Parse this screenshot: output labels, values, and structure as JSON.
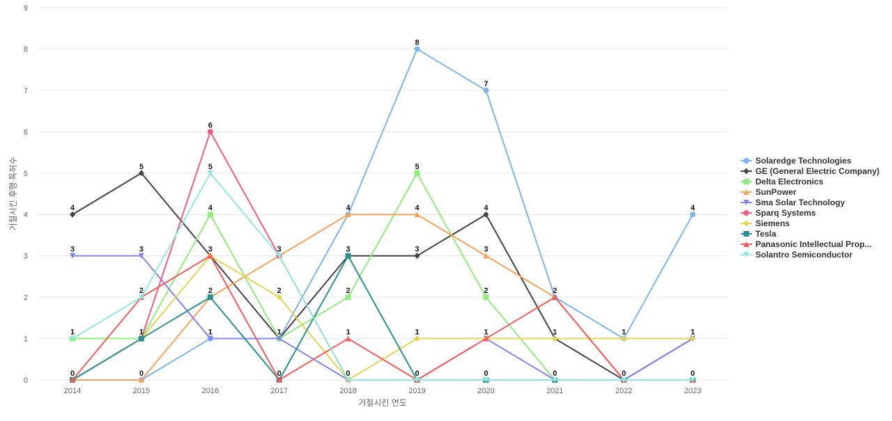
{
  "chart_data": {
    "type": "line",
    "title": "",
    "xlabel": "거절시킨 연도",
    "ylabel": "거절시킨 후행 특허수",
    "x": [
      "2014",
      "2015",
      "2016",
      "2017",
      "2018",
      "2019",
      "2020",
      "2021",
      "2022",
      "2023"
    ],
    "ylim": [
      0,
      9
    ],
    "yticks": [
      0,
      1,
      2,
      3,
      4,
      5,
      6,
      7,
      8,
      9
    ],
    "grid": true,
    "legend_position": "right",
    "series": [
      {
        "name": "Solaredge Technologies",
        "color": "#7cb5ec",
        "marker": "circle",
        "values": [
          0,
          0,
          1,
          1,
          4,
          8,
          7,
          2,
          1,
          4
        ]
      },
      {
        "name": "GE (General Electric Company)",
        "color": "#434348",
        "marker": "diamond",
        "values": [
          4,
          5,
          3,
          1,
          3,
          3,
          4,
          1,
          0,
          1
        ]
      },
      {
        "name": "Delta Electronics",
        "color": "#90ed7d",
        "marker": "square",
        "values": [
          1,
          1,
          4,
          1,
          2,
          5,
          2,
          0,
          0,
          0
        ]
      },
      {
        "name": "SunPower",
        "color": "#f7a35c",
        "marker": "triangle",
        "values": [
          0,
          0,
          2,
          3,
          4,
          4,
          3,
          2,
          0,
          0
        ]
      },
      {
        "name": "Sma Solar Technology",
        "color": "#8085e9",
        "marker": "triangle-down",
        "values": [
          3,
          3,
          1,
          1,
          0,
          0,
          1,
          0,
          0,
          1
        ]
      },
      {
        "name": "Sparq Systems",
        "color": "#f15c80",
        "marker": "circle",
        "values": [
          0,
          1,
          6,
          3,
          0,
          0,
          0,
          0,
          0,
          0
        ]
      },
      {
        "name": "Siemens",
        "color": "#e4d354",
        "marker": "diamond",
        "values": [
          0,
          1,
          3,
          2,
          0,
          1,
          1,
          1,
          1,
          1
        ]
      },
      {
        "name": "Tesla",
        "color": "#2b908f",
        "marker": "square",
        "values": [
          0,
          1,
          2,
          0,
          3,
          0,
          0,
          0,
          0,
          0
        ]
      },
      {
        "name": "Panasonic Intellectual Prop...",
        "color": "#f45b5b",
        "marker": "triangle",
        "values": [
          0,
          2,
          3,
          0,
          1,
          0,
          1,
          2,
          0,
          0
        ]
      },
      {
        "name": "Solantro Semiconductor",
        "color": "#91e8e1",
        "marker": "triangle-down",
        "values": [
          1,
          2,
          5,
          3,
          0,
          0,
          0,
          0,
          0,
          0
        ]
      }
    ],
    "data_labels": [
      {
        "x": "2014",
        "text": "4",
        "value": 4
      },
      {
        "x": "2014",
        "text": "3",
        "value": 3
      },
      {
        "x": "2014",
        "text": "1",
        "value": 1
      },
      {
        "x": "2014",
        "text": "0",
        "value": 0
      },
      {
        "x": "2015",
        "text": "5",
        "value": 5
      },
      {
        "x": "2015",
        "text": "3",
        "value": 3
      },
      {
        "x": "2015",
        "text": "2",
        "value": 2
      },
      {
        "x": "2015",
        "text": "1",
        "value": 1
      },
      {
        "x": "2015",
        "text": "0",
        "value": 0
      },
      {
        "x": "2016",
        "text": "6",
        "value": 6
      },
      {
        "x": "2016",
        "text": "5",
        "value": 5
      },
      {
        "x": "2016",
        "text": "4",
        "value": 4
      },
      {
        "x": "2016",
        "text": "3",
        "value": 3
      },
      {
        "x": "2016",
        "text": "2",
        "value": 2
      },
      {
        "x": "2016",
        "text": "1",
        "value": 1
      },
      {
        "x": "2017",
        "text": "3",
        "value": 3
      },
      {
        "x": "2017",
        "text": "2",
        "value": 2
      },
      {
        "x": "2017",
        "text": "1",
        "value": 1
      },
      {
        "x": "2017",
        "text": "0",
        "value": 0
      },
      {
        "x": "2018",
        "text": "4",
        "value": 4
      },
      {
        "x": "2018",
        "text": "3",
        "value": 3
      },
      {
        "x": "2018",
        "text": "2",
        "value": 2
      },
      {
        "x": "2018",
        "text": "1",
        "value": 1
      },
      {
        "x": "2018",
        "text": "0",
        "value": 0
      },
      {
        "x": "2019",
        "text": "8",
        "value": 8
      },
      {
        "x": "2019",
        "text": "5",
        "value": 5
      },
      {
        "x": "2019",
        "text": "4",
        "value": 4
      },
      {
        "x": "2019",
        "text": "3",
        "value": 3
      },
      {
        "x": "2019",
        "text": "1",
        "value": 1
      },
      {
        "x": "2019",
        "text": "0",
        "value": 0
      },
      {
        "x": "2020",
        "text": "7",
        "value": 7
      },
      {
        "x": "2020",
        "text": "4",
        "value": 4
      },
      {
        "x": "2020",
        "text": "3",
        "value": 3
      },
      {
        "x": "2020",
        "text": "2",
        "value": 2
      },
      {
        "x": "2020",
        "text": "1",
        "value": 1
      },
      {
        "x": "2020",
        "text": "0",
        "value": 0
      },
      {
        "x": "2021",
        "text": "2",
        "value": 2
      },
      {
        "x": "2021",
        "text": "1",
        "value": 1
      },
      {
        "x": "2021",
        "text": "0",
        "value": 0
      },
      {
        "x": "2022",
        "text": "1",
        "value": 1
      },
      {
        "x": "2022",
        "text": "0",
        "value": 0
      },
      {
        "x": "2023",
        "text": "4",
        "value": 4
      },
      {
        "x": "2023",
        "text": "1",
        "value": 1
      },
      {
        "x": "2023",
        "text": "0",
        "value": 0
      }
    ]
  }
}
